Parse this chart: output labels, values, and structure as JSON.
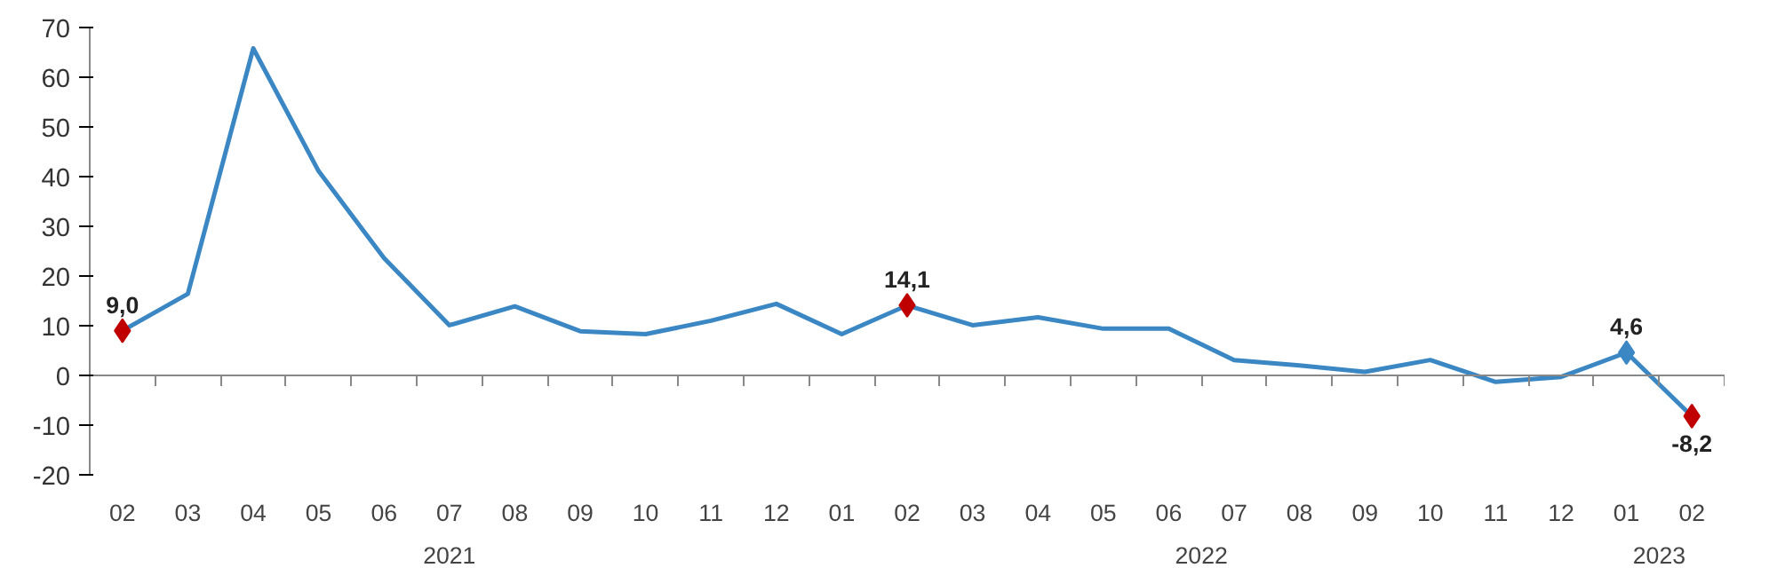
{
  "chart_data": {
    "type": "line",
    "categories": [
      "02",
      "03",
      "04",
      "05",
      "06",
      "07",
      "08",
      "09",
      "10",
      "11",
      "12",
      "01",
      "02",
      "03",
      "04",
      "05",
      "06",
      "07",
      "08",
      "09",
      "10",
      "11",
      "12",
      "01",
      "02"
    ],
    "series": [
      {
        "color": "#3a87c4",
        "marker": "none",
        "values": [
          9.0,
          16.4,
          65.8,
          41.1,
          23.6,
          10.1,
          13.9,
          8.9,
          8.3,
          11.0,
          14.4,
          8.3,
          14.1,
          10.1,
          11.7,
          9.4,
          9.4,
          3.1,
          2.0,
          0.7,
          3.1,
          -1.3,
          -0.3,
          4.6,
          -8.2
        ]
      },
      {
        "type": "scatter",
        "marker": "diamond",
        "color": "#c00000",
        "colors": [
          "#c00000",
          null,
          null,
          null,
          null,
          null,
          null,
          null,
          null,
          null,
          null,
          null,
          "#c00000",
          null,
          null,
          null,
          null,
          null,
          null,
          null,
          null,
          null,
          null,
          "#3a87c4",
          "#c00000"
        ],
        "values": [
          9.0,
          null,
          null,
          null,
          null,
          null,
          null,
          null,
          null,
          null,
          null,
          null,
          14.1,
          null,
          null,
          null,
          null,
          null,
          null,
          null,
          null,
          null,
          null,
          4.6,
          -8.2
        ],
        "value_labels": [
          "9,0",
          null,
          null,
          null,
          null,
          null,
          null,
          null,
          null,
          null,
          null,
          null,
          "14,1",
          null,
          null,
          null,
          null,
          null,
          null,
          null,
          null,
          null,
          null,
          "4,6",
          "-8,2"
        ]
      }
    ],
    "annotations": [
      "2021",
      "2022",
      "2023"
    ],
    "ylim": [
      -20,
      70
    ],
    "yticks": [
      -20,
      -10,
      0,
      10,
      20,
      30,
      40,
      50,
      60,
      70
    ]
  }
}
